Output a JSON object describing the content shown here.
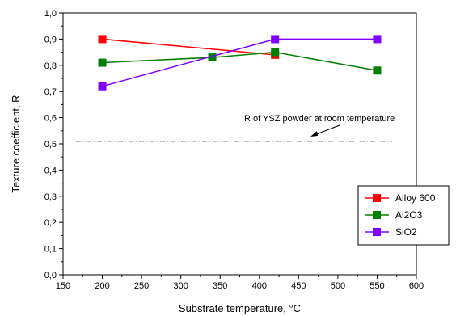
{
  "chart_data": {
    "type": "line",
    "xlabel": "Substrate temperature, °C",
    "ylabel": "Texture coefficient, R",
    "xlim": [
      150,
      600
    ],
    "ylim": [
      0.0,
      1.0
    ],
    "xticks": [
      150,
      200,
      250,
      300,
      350,
      400,
      450,
      500,
      550,
      600
    ],
    "yticks": [
      0.0,
      0.1,
      0.2,
      0.3,
      0.4,
      0.5,
      0.6,
      0.7,
      0.8,
      0.9,
      1.0
    ],
    "xtick_labels": [
      "150",
      "200",
      "250",
      "300",
      "350",
      "400",
      "450",
      "500",
      "550",
      "600"
    ],
    "ytick_labels": [
      "0,0",
      "0,1",
      "0,2",
      "0,3",
      "0,4",
      "0,5",
      "0,6",
      "0,7",
      "0,8",
      "0,9",
      "1,0"
    ],
    "grid": false,
    "legend_position": "right",
    "series": [
      {
        "name": "Alloy 600",
        "color": "#ff0000",
        "x": [
          200,
          420
        ],
        "y": [
          0.9,
          0.84
        ]
      },
      {
        "name": "Al2O3",
        "color": "#008000",
        "x": [
          200,
          340,
          420,
          550
        ],
        "y": [
          0.81,
          0.83,
          0.85,
          0.78
        ]
      },
      {
        "name": "SiO2",
        "color": "#8000ff",
        "x": [
          200,
          420,
          550
        ],
        "y": [
          0.72,
          0.9,
          0.9
        ]
      }
    ],
    "reference_line": {
      "y": 0.51,
      "style": "dash-dot"
    },
    "annotation": {
      "text": "R of YSZ powder at room temperature"
    }
  }
}
